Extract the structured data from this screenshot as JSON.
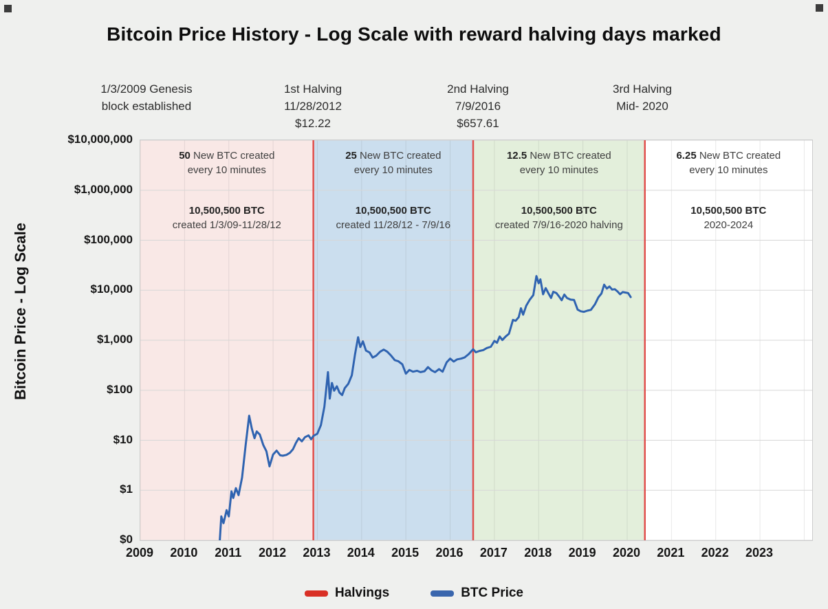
{
  "title": "Bitcoin Price History - Log Scale with reward halving days marked",
  "y_axis": {
    "label": "Bitcoin Price - Log Scale",
    "ticks": [
      "$10,000,000",
      "$1,000,000",
      "$100,000",
      "$10,000",
      "$1,000",
      "$100",
      "$10",
      "$1",
      "$0"
    ]
  },
  "x_axis": {
    "ticks": [
      "2009",
      "2010",
      "2011",
      "2012",
      "2013",
      "2014",
      "2015",
      "2016",
      "2017",
      "2018",
      "2019",
      "2020",
      "2021",
      "2022",
      "2023"
    ]
  },
  "annotations": [
    {
      "line1": "1/3/2009 Genesis",
      "line2": "block established",
      "line3": ""
    },
    {
      "line1": "1st Halving",
      "line2": "11/28/2012",
      "line3": "$12.22"
    },
    {
      "line1": "2nd Halving",
      "line2": "7/9/2016",
      "line3": "$657.61"
    },
    {
      "line1": "3rd Halving",
      "line2": "Mid- 2020",
      "line3": ""
    }
  ],
  "legend": [
    {
      "label": "Halvings",
      "color": "#d93025"
    },
    {
      "label": "BTC Price",
      "color": "#3a66ad"
    }
  ],
  "chart_data": {
    "type": "line",
    "title": "Bitcoin Price History - Log Scale with reward halving days marked",
    "xlabel": "",
    "ylabel": "Bitcoin Price - Log Scale",
    "y_scale": "log",
    "y_range_usd": [
      0.1,
      10000000
    ],
    "y_tick_values": [
      0.1,
      1,
      10,
      100,
      1000,
      10000,
      100000,
      1000000,
      10000000
    ],
    "x_range_years": [
      2009,
      2024.18
    ],
    "grid": true,
    "legend_position": "bottom",
    "line_color": "#2f63b0",
    "halving_line_color": "#e04f4c",
    "halvings": [
      {
        "label": "1st Halving",
        "date": "11/28/2012",
        "year": 2012.91,
        "price": "$12.22"
      },
      {
        "label": "2nd Halving",
        "date": "7/9/2016",
        "year": 2016.52,
        "price": "$657.61"
      },
      {
        "label": "3rd Halving",
        "date": "Mid- 2020",
        "year": 2020.4,
        "price": ""
      }
    ],
    "regions": [
      {
        "start_year": 2009,
        "end_year": 2012.91,
        "color": "#f9e8e6",
        "reward_bold": "50",
        "reward_rest": " New BTC created",
        "reward_line2": "every 10 minutes",
        "total_btc": "10,500,500 BTC",
        "total_desc": "created 1/3/09-11/28/12"
      },
      {
        "start_year": 2012.91,
        "end_year": 2016.52,
        "color": "#cbdeee",
        "reward_bold": "25",
        "reward_rest": " New BTC created",
        "reward_line2": "every 10 minutes",
        "total_btc": "10,500,500 BTC",
        "total_desc": "created 11/28/12 - 7/9/16"
      },
      {
        "start_year": 2016.52,
        "end_year": 2020.4,
        "color": "#e3efdb",
        "reward_bold": "12.5",
        "reward_rest": " New BTC created",
        "reward_line2": "every 10 minutes",
        "total_btc": "10,500,500 BTC",
        "total_desc": "created 7/9/16-2020 halving"
      },
      {
        "start_year": 2020.4,
        "end_year": 2024.18,
        "color": "#ffffff",
        "reward_bold": "6.25",
        "reward_rest": " New BTC created",
        "reward_line2": "every 10 minutes",
        "total_btc": "10,500,500 BTC",
        "total_desc": "2020-2024"
      }
    ],
    "series": [
      {
        "name": "BTC Price",
        "unit": "USD",
        "points": [
          [
            2010.78,
            0.06
          ],
          [
            2010.83,
            0.3
          ],
          [
            2010.88,
            0.22
          ],
          [
            2010.95,
            0.4
          ],
          [
            2011.0,
            0.3
          ],
          [
            2011.06,
            0.95
          ],
          [
            2011.1,
            0.7
          ],
          [
            2011.16,
            1.1
          ],
          [
            2011.22,
            0.8
          ],
          [
            2011.3,
            1.8
          ],
          [
            2011.38,
            8.0
          ],
          [
            2011.46,
            31
          ],
          [
            2011.52,
            17
          ],
          [
            2011.58,
            11
          ],
          [
            2011.63,
            15
          ],
          [
            2011.7,
            13
          ],
          [
            2011.78,
            8
          ],
          [
            2011.85,
            6
          ],
          [
            2011.92,
            3.0
          ],
          [
            2012.0,
            5.2
          ],
          [
            2012.08,
            6.2
          ],
          [
            2012.16,
            5.0
          ],
          [
            2012.22,
            4.9
          ],
          [
            2012.3,
            5.1
          ],
          [
            2012.38,
            5.6
          ],
          [
            2012.45,
            6.6
          ],
          [
            2012.52,
            9.0
          ],
          [
            2012.58,
            11.0
          ],
          [
            2012.65,
            9.5
          ],
          [
            2012.72,
            11.5
          ],
          [
            2012.8,
            12.5
          ],
          [
            2012.86,
            10.5
          ],
          [
            2012.91,
            12.2
          ],
          [
            2013.0,
            13.5
          ],
          [
            2013.08,
            20
          ],
          [
            2013.16,
            47
          ],
          [
            2013.24,
            230
          ],
          [
            2013.28,
            68
          ],
          [
            2013.33,
            140
          ],
          [
            2013.38,
            98
          ],
          [
            2013.44,
            120
          ],
          [
            2013.5,
            90
          ],
          [
            2013.56,
            80
          ],
          [
            2013.62,
            110
          ],
          [
            2013.7,
            135
          ],
          [
            2013.78,
            200
          ],
          [
            2013.85,
            520
          ],
          [
            2013.92,
            1150
          ],
          [
            2013.97,
            730
          ],
          [
            2014.03,
            950
          ],
          [
            2014.1,
            620
          ],
          [
            2014.18,
            570
          ],
          [
            2014.25,
            450
          ],
          [
            2014.33,
            490
          ],
          [
            2014.42,
            590
          ],
          [
            2014.5,
            650
          ],
          [
            2014.58,
            590
          ],
          [
            2014.66,
            500
          ],
          [
            2014.75,
            400
          ],
          [
            2014.83,
            380
          ],
          [
            2014.92,
            330
          ],
          [
            2015.0,
            215
          ],
          [
            2015.08,
            255
          ],
          [
            2015.16,
            235
          ],
          [
            2015.25,
            245
          ],
          [
            2015.33,
            230
          ],
          [
            2015.42,
            240
          ],
          [
            2015.5,
            290
          ],
          [
            2015.58,
            250
          ],
          [
            2015.66,
            230
          ],
          [
            2015.75,
            265
          ],
          [
            2015.83,
            235
          ],
          [
            2015.92,
            360
          ],
          [
            2016.0,
            430
          ],
          [
            2016.08,
            375
          ],
          [
            2016.16,
            415
          ],
          [
            2016.25,
            430
          ],
          [
            2016.33,
            455
          ],
          [
            2016.42,
            530
          ],
          [
            2016.52,
            660
          ],
          [
            2016.58,
            575
          ],
          [
            2016.66,
            610
          ],
          [
            2016.75,
            635
          ],
          [
            2016.83,
            700
          ],
          [
            2016.92,
            740
          ],
          [
            2017.0,
            970
          ],
          [
            2017.06,
            890
          ],
          [
            2017.12,
            1190
          ],
          [
            2017.18,
            1010
          ],
          [
            2017.25,
            1180
          ],
          [
            2017.33,
            1350
          ],
          [
            2017.42,
            2550
          ],
          [
            2017.48,
            2450
          ],
          [
            2017.55,
            2900
          ],
          [
            2017.6,
            4350
          ],
          [
            2017.65,
            3250
          ],
          [
            2017.72,
            4900
          ],
          [
            2017.8,
            6500
          ],
          [
            2017.88,
            8000
          ],
          [
            2017.95,
            19200
          ],
          [
            2018.0,
            13800
          ],
          [
            2018.04,
            16500
          ],
          [
            2018.1,
            8300
          ],
          [
            2018.16,
            11000
          ],
          [
            2018.22,
            8700
          ],
          [
            2018.28,
            7000
          ],
          [
            2018.33,
            9300
          ],
          [
            2018.4,
            8800
          ],
          [
            2018.46,
            7500
          ],
          [
            2018.52,
            6300
          ],
          [
            2018.58,
            8200
          ],
          [
            2018.64,
            7000
          ],
          [
            2018.72,
            6500
          ],
          [
            2018.8,
            6400
          ],
          [
            2018.88,
            4100
          ],
          [
            2018.95,
            3800
          ],
          [
            2019.02,
            3700
          ],
          [
            2019.1,
            3900
          ],
          [
            2019.18,
            4050
          ],
          [
            2019.27,
            5200
          ],
          [
            2019.35,
            7200
          ],
          [
            2019.42,
            8600
          ],
          [
            2019.48,
            12900
          ],
          [
            2019.54,
            10800
          ],
          [
            2019.6,
            11900
          ],
          [
            2019.66,
            10300
          ],
          [
            2019.72,
            10500
          ],
          [
            2019.78,
            9500
          ],
          [
            2019.84,
            8300
          ],
          [
            2019.9,
            9200
          ],
          [
            2019.96,
            9000
          ],
          [
            2020.02,
            8800
          ],
          [
            2020.08,
            7300
          ]
        ]
      }
    ]
  }
}
